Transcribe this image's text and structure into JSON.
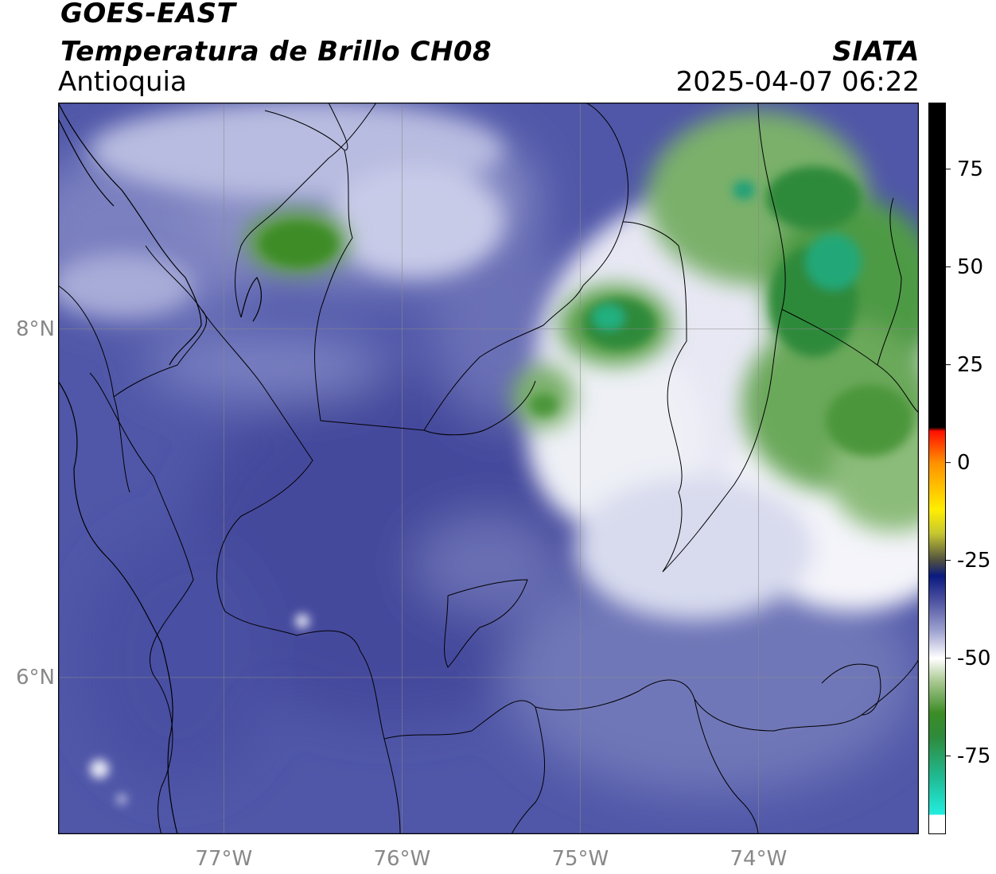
{
  "header": {
    "satellite": "GOES-EAST",
    "product": "Temperatura de Brillo CH08",
    "region": "Antioquia",
    "source": "SIATA",
    "datetime": "2025-04-07 06:22"
  },
  "map": {
    "lon_range": [
      -77.93,
      -73.1
    ],
    "lat_range": [
      5.1,
      9.3
    ],
    "lat_ticks": [
      {
        "value": 8,
        "label": "8°N"
      },
      {
        "value": 6,
        "label": "6°N"
      }
    ],
    "lon_ticks": [
      {
        "value": -77,
        "label": "77°W"
      },
      {
        "value": -76,
        "label": "76°W"
      },
      {
        "value": -75,
        "label": "75°W"
      },
      {
        "value": -74,
        "label": "74°W"
      }
    ],
    "background_color": "#5057a8",
    "gridlines": true
  },
  "colorbar": {
    "range": [
      -95,
      92
    ],
    "ticks": [
      {
        "value": 75,
        "label": "75"
      },
      {
        "value": 50,
        "label": "50"
      },
      {
        "value": 25,
        "label": "25"
      },
      {
        "value": 0,
        "label": "0"
      },
      {
        "value": -25,
        "label": "-25"
      },
      {
        "value": -50,
        "label": "-50"
      },
      {
        "value": -75,
        "label": "-75"
      }
    ],
    "stops": [
      {
        "value": -95,
        "color": "#ffffff"
      },
      {
        "value": -90,
        "color": "#ffffff"
      },
      {
        "value": -90,
        "color": "#22eee0"
      },
      {
        "value": -80,
        "color": "#20b890"
      },
      {
        "value": -70,
        "color": "#2f8a3a"
      },
      {
        "value": -64,
        "color": "#3c8c26"
      },
      {
        "value": -56,
        "color": "#a8c890"
      },
      {
        "value": -50,
        "color": "#ffffff"
      },
      {
        "value": -43,
        "color": "#9ea2d0"
      },
      {
        "value": -35,
        "color": "#4a4f9e"
      },
      {
        "value": -29,
        "color": "#0a1a80"
      },
      {
        "value": -25,
        "color": "#505040"
      },
      {
        "value": -18,
        "color": "#c8c830"
      },
      {
        "value": -12,
        "color": "#ffee00"
      },
      {
        "value": 0,
        "color": "#ff9000"
      },
      {
        "value": 8,
        "color": "#ff1000"
      },
      {
        "value": 9,
        "color": "#000000"
      },
      {
        "value": 92,
        "color": "#000000"
      }
    ]
  },
  "cloud_features": [
    {
      "name": "green-cluster-north-east",
      "lon": -73.7,
      "lat": 8.75,
      "color": "#2f8a3a"
    },
    {
      "name": "green-cluster-east",
      "lon": -73.55,
      "lat": 8.35,
      "color": "#2f8a3a"
    },
    {
      "name": "green-cluster-center",
      "lon": -74.75,
      "lat": 7.95,
      "color": "#2f8a3a"
    },
    {
      "name": "green-cluster-north-west",
      "lon": -76.6,
      "lat": 8.4,
      "color": "#3c8c26"
    },
    {
      "name": "green-cluster-south-east",
      "lon": -73.55,
      "lat": 7.5,
      "color": "#4c963a"
    }
  ]
}
